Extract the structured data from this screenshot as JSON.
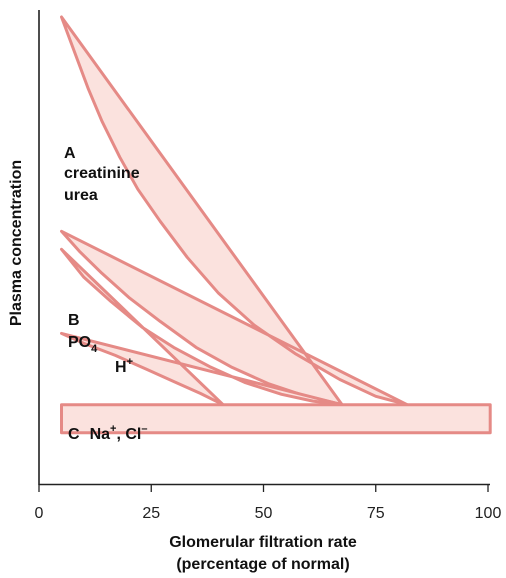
{
  "chart_data": {
    "type": "area",
    "xlabel_lines": [
      "Glomerular filtration rate",
      "(percentage of normal)"
    ],
    "ylabel": "Plasma concentration",
    "xlim": [
      0,
      100
    ],
    "xticks": [
      0,
      25,
      50,
      75,
      100
    ],
    "grid": false,
    "style": {
      "band_fill": "#fbe2de",
      "band_stroke": "#e58a86"
    },
    "bands": [
      {
        "id": "A",
        "labels": [
          "A",
          "creatinine",
          "urea"
        ],
        "upper": [
          [
            5,
            100
          ],
          [
            8,
            91
          ],
          [
            11,
            82
          ],
          [
            14,
            74
          ],
          [
            18,
            65
          ],
          [
            22,
            57
          ],
          [
            27,
            49
          ],
          [
            33,
            40
          ],
          [
            40,
            31
          ],
          [
            48,
            23
          ],
          [
            57,
            16
          ],
          [
            67,
            9.5
          ],
          [
            75,
            5.3
          ],
          [
            82,
            3.2
          ]
        ],
        "lower": [
          [
            5,
            46.5
          ],
          [
            9,
            41.5
          ],
          [
            14,
            36
          ],
          [
            20,
            30
          ],
          [
            27,
            24
          ],
          [
            35,
            17.5
          ],
          [
            43,
            12.5
          ],
          [
            51,
            8.5
          ],
          [
            59,
            5.5
          ],
          [
            67.5,
            3.2
          ]
        ]
      },
      {
        "id": "B",
        "labels": [
          "B",
          "PO",
          "4",
          "H",
          "+"
        ],
        "upper": [
          [
            5,
            42
          ],
          [
            10,
            35
          ],
          [
            16,
            29
          ],
          [
            23,
            22.5
          ],
          [
            30,
            17.5
          ],
          [
            38,
            12.7
          ],
          [
            46,
            8.7
          ],
          [
            54,
            5.8
          ],
          [
            61,
            4.1
          ],
          [
            67.5,
            3.2
          ]
        ],
        "lower": [
          [
            5,
            21
          ],
          [
            10,
            18.5
          ],
          [
            17,
            15.5
          ],
          [
            24,
            12
          ],
          [
            30,
            9
          ],
          [
            36,
            6
          ],
          [
            41,
            3.2
          ]
        ]
      },
      {
        "id": "C",
        "labels": [
          "C",
          "Na",
          "+",
          ", Cl",
          "–"
        ],
        "upper": [
          [
            5,
            3.2
          ],
          [
            100.5,
            3.2
          ]
        ],
        "lower": [
          [
            100.5,
            -3.8
          ],
          [
            5,
            -3.8
          ]
        ]
      }
    ]
  }
}
